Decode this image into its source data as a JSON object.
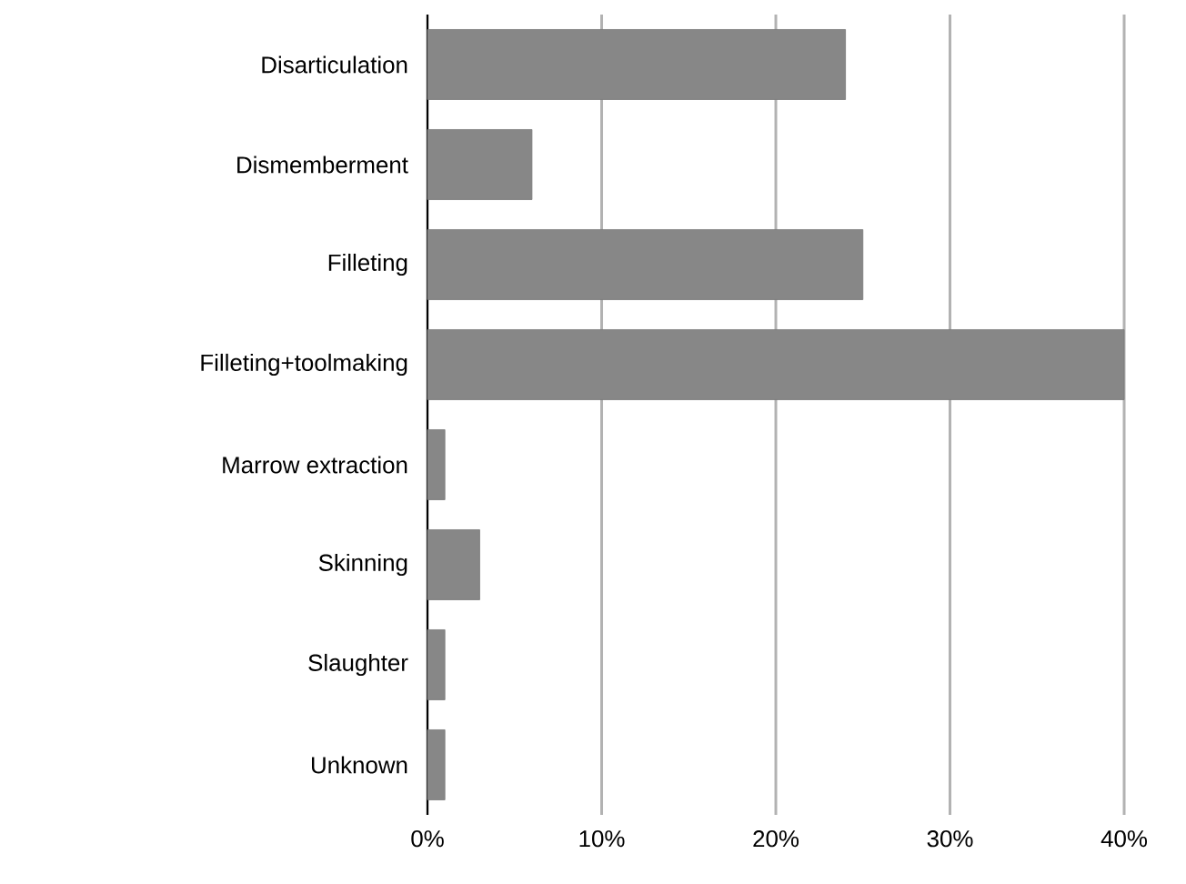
{
  "chart_data": {
    "type": "bar",
    "orientation": "horizontal",
    "categories": [
      "Disarticulation",
      "Dismemberment",
      "Filleting",
      "Filleting+toolmaking",
      "Marrow extraction",
      "Skinning",
      "Slaughter",
      "Unknown"
    ],
    "values": [
      24,
      6,
      25,
      40,
      1,
      3,
      1,
      1
    ],
    "color": "#878787",
    "xlim": [
      0,
      40
    ],
    "xticks": [
      {
        "value": 0,
        "label": "0%"
      },
      {
        "value": 10,
        "label": "10%"
      },
      {
        "value": 20,
        "label": "20%"
      },
      {
        "value": 30,
        "label": "30%"
      },
      {
        "value": 40,
        "label": "40%"
      }
    ],
    "grid": "x"
  }
}
